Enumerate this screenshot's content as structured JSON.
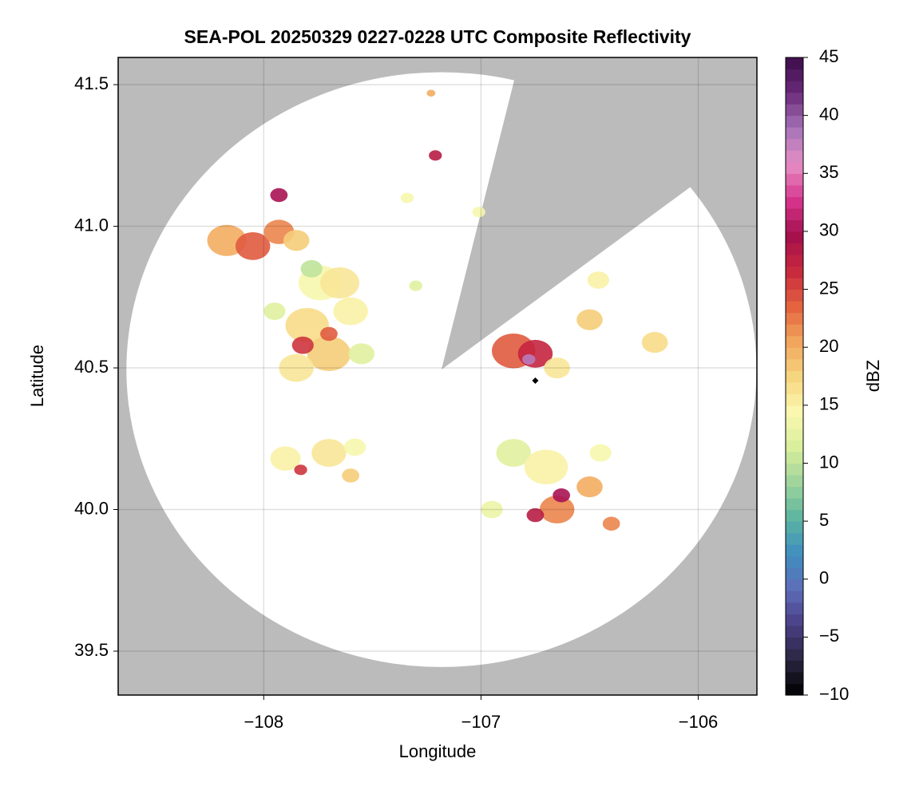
{
  "chart_data": {
    "type": "radar",
    "title": "SEA-POL 20250329 0227-0228 UTC Composite Reflectivity",
    "x_label": "Longitude",
    "y_label": "Latitude",
    "colorbar_label": "dBZ",
    "xlim": [
      -108.67,
      -105.73
    ],
    "ylim": [
      39.345,
      41.596
    ],
    "xticks": [
      {
        "value": -108,
        "label": "−108"
      },
      {
        "value": -107,
        "label": "−107"
      },
      {
        "value": -106,
        "label": "−106"
      }
    ],
    "yticks": [
      39.5,
      {
        "value": 40.0,
        "label": "40.0"
      },
      40.5,
      {
        "value": 41.0,
        "label": "41.0"
      },
      41.5
    ],
    "clim": [
      -10,
      45
    ],
    "cticks": [
      {
        "value": -10,
        "label": "−10"
      },
      {
        "value": -5,
        "label": "−5"
      },
      0,
      5,
      10,
      15,
      20,
      25,
      30,
      35,
      40,
      45
    ],
    "colormap": [
      "#000000",
      "#2a2540",
      "#4a3f86",
      "#5e6db8",
      "#3f8fc0",
      "#5cb59f",
      "#9fd49c",
      "#d9ef9b",
      "#fbf8b0",
      "#f6d57f",
      "#f2a45c",
      "#e3623f",
      "#c8283e",
      "#a30f4d",
      "#d8368e",
      "#e68fc5",
      "#a673b8",
      "#6b2a7a",
      "#3c0d4a"
    ],
    "background_color": "#bbbbbb",
    "coverage_color": "#ffffff",
    "grid": true,
    "radar": {
      "center": [
        -107.182,
        40.494
      ],
      "radius_lon": 1.45,
      "radius_lat": 1.05
    },
    "blocked_sector": [
      [
        -106.844,
        41.525
      ],
      [
        -106.062,
        41.124
      ]
    ],
    "site": [
      -106.75,
      40.455
    ],
    "series": [
      {
        "x": [
          -108.17,
          -108.05,
          -107.93,
          -107.85,
          -107.93,
          -107.74,
          -107.65,
          -107.8,
          -107.7,
          -107.85,
          -107.82,
          -107.7,
          -107.55,
          -107.6,
          -107.95,
          -107.78,
          -107.9,
          -107.83,
          -107.7,
          -107.58,
          -107.6,
          -106.85,
          -106.75,
          -106.65,
          -106.78,
          -106.5,
          -106.2,
          -106.46,
          -106.85,
          -106.7,
          -106.95,
          -106.45,
          -106.5,
          -106.65,
          -106.75,
          -106.63,
          -106.4,
          -107.21,
          -107.23,
          -107.34,
          -107.01,
          -107.3
        ],
        "y": [
          40.95,
          40.93,
          40.98,
          40.95,
          41.11,
          40.8,
          40.8,
          40.65,
          40.55,
          40.5,
          40.58,
          40.62,
          40.55,
          40.7,
          40.7,
          40.85,
          40.18,
          40.14,
          40.2,
          40.22,
          40.12,
          40.56,
          40.55,
          40.5,
          40.53,
          40.67,
          40.59,
          40.81,
          40.2,
          40.15,
          40.0,
          40.2,
          40.08,
          40.0,
          39.98,
          40.05,
          39.95,
          41.25,
          41.47,
          41.1,
          41.05,
          40.79
        ],
        "values": [
          20,
          24,
          22,
          18,
          30,
          14,
          16,
          17,
          18,
          16,
          26,
          24,
          12,
          15,
          12,
          10,
          15,
          26,
          16,
          14,
          18,
          24,
          27,
          16,
          38,
          18,
          17,
          15,
          12,
          15,
          13,
          14,
          20,
          22,
          28,
          30,
          22,
          28,
          20,
          14,
          14,
          12
        ],
        "r": [
          0.09,
          0.08,
          0.07,
          0.06,
          0.04,
          0.1,
          0.09,
          0.1,
          0.1,
          0.08,
          0.05,
          0.04,
          0.06,
          0.08,
          0.05,
          0.05,
          0.07,
          0.03,
          0.08,
          0.05,
          0.04,
          0.1,
          0.08,
          0.06,
          0.03,
          0.06,
          0.06,
          0.05,
          0.08,
          0.1,
          0.05,
          0.05,
          0.06,
          0.08,
          0.04,
          0.04,
          0.04,
          0.03,
          0.02,
          0.03,
          0.03,
          0.03
        ]
      }
    ]
  }
}
